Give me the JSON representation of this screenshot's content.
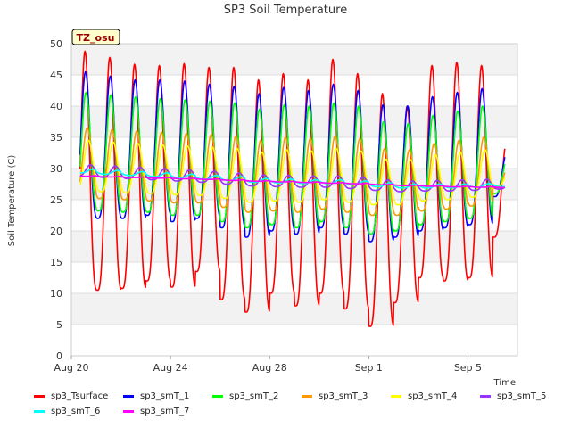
{
  "chart_data": {
    "type": "line",
    "title": "SP3 Soil Temperature",
    "xlabel": "Time",
    "ylabel": "Soil Temperature (C)",
    "ylim": [
      0,
      50
    ],
    "xlim_days": [
      0,
      18
    ],
    "yticks": [
      0,
      5,
      10,
      15,
      20,
      25,
      30,
      35,
      40,
      45,
      50
    ],
    "xticks": [
      {
        "label": "Aug 20",
        "day": 0
      },
      {
        "label": "Aug 24",
        "day": 4
      },
      {
        "label": "Aug 28",
        "day": 8
      },
      {
        "label": "Sep 1",
        "day": 12
      },
      {
        "label": "Sep 5",
        "day": 16
      }
    ],
    "annotation": "TZ_osu",
    "x_start_day": 0.35,
    "x_end_day": 17.5,
    "daily_peak_day_offset": 0.55,
    "series": [
      {
        "name": "sp3_Tsurface",
        "color": "#ff0000",
        "lag": 0.0,
        "min": [
          10.5,
          10.5,
          10.8,
          12,
          11,
          13.5,
          9,
          7,
          10,
          8,
          10,
          7.5,
          4.7,
          8.5,
          12.5,
          12,
          12.5,
          19
        ],
        "max": [
          48.8,
          47.8,
          46.7,
          46.5,
          46.8,
          46.2,
          46.2,
          44.2,
          45.2,
          44.2,
          47.5,
          45.2,
          42,
          40,
          46.5,
          47,
          46.5,
          34
        ]
      },
      {
        "name": "sp3_smT_1",
        "color": "#0000ff",
        "lag": 0.02,
        "min": [
          22,
          22,
          22,
          22.5,
          21.5,
          22,
          20.5,
          19,
          20,
          19.5,
          20.5,
          19.5,
          18.3,
          19,
          20,
          20.5,
          21,
          25.5
        ],
        "max": [
          45.5,
          44.8,
          44.2,
          44.2,
          44,
          43.5,
          43.2,
          42,
          43,
          42.5,
          43.5,
          42.5,
          40.2,
          40,
          41.5,
          42.2,
          42.8,
          32.5
        ]
      },
      {
        "name": "sp3_smT_2",
        "color": "#00ff00",
        "lag": 0.04,
        "min": [
          23.5,
          23.2,
          23,
          23,
          22.5,
          22.5,
          21.5,
          20.5,
          21,
          20.5,
          21.5,
          20.5,
          19.5,
          20,
          21,
          21.5,
          22,
          26
        ],
        "max": [
          42.2,
          41.8,
          41.5,
          41.2,
          41,
          40.8,
          40.5,
          39.5,
          40.2,
          40,
          40.5,
          40,
          37.5,
          37.2,
          38.5,
          39.2,
          40,
          31.5
        ]
      },
      {
        "name": "sp3_smT_3",
        "color": "#ff9900",
        "lag": 0.09,
        "min": [
          25.5,
          25.2,
          25,
          24.8,
          24.5,
          24.5,
          23.8,
          23,
          23.2,
          23,
          23.5,
          23,
          22.5,
          22.5,
          23.2,
          23.5,
          24,
          26.8
        ],
        "max": [
          36.5,
          36.2,
          36,
          35.8,
          35.6,
          35.4,
          35.2,
          34.5,
          35,
          34.8,
          35.2,
          34.8,
          33.2,
          33,
          34,
          34.5,
          35,
          30.5
        ]
      },
      {
        "name": "sp3_smT_4",
        "color": "#ffff00",
        "lag": 0.14,
        "min": [
          26.5,
          26.3,
          26.1,
          26,
          25.8,
          25.7,
          25.2,
          24.6,
          24.8,
          24.6,
          25,
          24.6,
          24.2,
          24.2,
          24.8,
          25,
          25.4,
          27.2
        ],
        "max": [
          34.5,
          34.2,
          34,
          33.8,
          33.6,
          33.4,
          33.2,
          32.6,
          33,
          32.8,
          33.2,
          32.8,
          31.5,
          31.4,
          32.2,
          32.6,
          33,
          30
        ]
      },
      {
        "name": "sp3_smT_5",
        "color": "#9933ff",
        "lag": 0.22,
        "min": [
          28.8,
          28.6,
          28.4,
          28.2,
          28,
          27.8,
          27.5,
          27.2,
          27.1,
          27,
          27,
          26.8,
          26.5,
          26.3,
          26.4,
          26.4,
          26.5,
          26.7
        ],
        "max": [
          30.6,
          30.4,
          30.2,
          30,
          29.8,
          29.6,
          29.3,
          29,
          28.9,
          28.8,
          28.8,
          28.6,
          28.2,
          28,
          28.1,
          28.2,
          28.3,
          28.2
        ]
      },
      {
        "name": "sp3_smT_6",
        "color": "#00ffff",
        "lag": 0.3,
        "min": [
          29.3,
          29.1,
          28.9,
          28.7,
          28.5,
          28.3,
          28.1,
          27.8,
          27.7,
          27.6,
          27.6,
          27.4,
          27.1,
          26.9,
          26.9,
          26.9,
          27,
          27.1
        ],
        "max": [
          29.9,
          29.7,
          29.5,
          29.3,
          29.1,
          28.9,
          28.7,
          28.4,
          28.3,
          28.2,
          28.2,
          28,
          27.7,
          27.5,
          27.5,
          27.5,
          27.6,
          27.6
        ]
      },
      {
        "name": "sp3_smT_7",
        "color": "#ff00ff",
        "lag": 0.45,
        "min": [
          28.75,
          28.65,
          28.55,
          28.45,
          28.35,
          28.25,
          28.1,
          27.95,
          27.85,
          27.75,
          27.65,
          27.55,
          27.4,
          27.25,
          27.15,
          27.05,
          27,
          26.95
        ],
        "max": [
          28.85,
          28.75,
          28.65,
          28.55,
          28.45,
          28.35,
          28.2,
          28.05,
          27.95,
          27.85,
          27.75,
          27.65,
          27.5,
          27.35,
          27.25,
          27.15,
          27.1,
          27.05
        ]
      }
    ]
  },
  "legend_rows": [
    [
      "sp3_Tsurface",
      "sp3_smT_1",
      "sp3_smT_2",
      "sp3_smT_3",
      "sp3_smT_4",
      "sp3_smT_5"
    ],
    [
      "sp3_smT_6",
      "sp3_smT_7"
    ]
  ]
}
